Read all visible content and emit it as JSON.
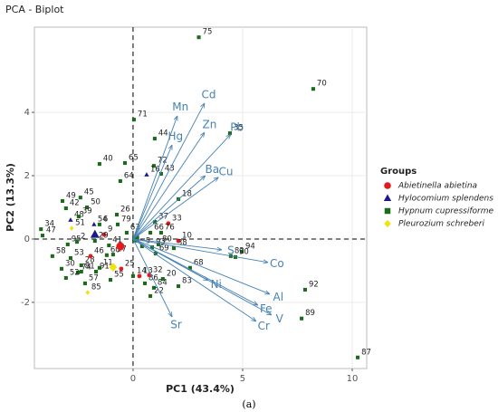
{
  "chart_data": {
    "type": "biplot",
    "title": "PCA - Biplot",
    "xlabel": "PC1 (43.4%)",
    "ylabel": "PC2 (13.3%)",
    "caption": "(a)",
    "xlim": [
      -4.5,
      10.66
    ],
    "ylim": [
      -4.09,
      6.69
    ],
    "xticks": [
      0,
      5,
      10
    ],
    "yticks": [
      -2,
      0,
      2,
      4
    ],
    "grid": true,
    "legend_title": "Groups",
    "loading_color": "#4682b4",
    "groups": [
      {
        "name": "Abietinella abietina",
        "color": "#e41a1c",
        "shape": "circle",
        "centroid": [
          -0.58,
          -0.23
        ]
      },
      {
        "name": "Hylocomium splendens",
        "color": "#1a1a8c",
        "shape": "triangle",
        "centroid": [
          -1.74,
          0.14
        ]
      },
      {
        "name": "Hypnum cupressiforme",
        "color": "#1b6b1b",
        "shape": "square",
        "centroid": [
          0.12,
          0
        ]
      },
      {
        "name": "Pleurozium schreberi",
        "color": "#f2e20f",
        "shape": "diamond",
        "centroid": [
          -0.91,
          -0.89
        ]
      }
    ],
    "loadings": [
      {
        "name": "Cd",
        "x": 3.26,
        "y": 4.29
      },
      {
        "name": "Mn",
        "x": 2.02,
        "y": 3.89
      },
      {
        "name": "Zn",
        "x": 3.26,
        "y": 3.37
      },
      {
        "name": "Pb",
        "x": 4.46,
        "y": 3.31
      },
      {
        "name": "Hg",
        "x": 1.78,
        "y": 2.97
      },
      {
        "name": "Ba",
        "x": 3.3,
        "y": 2.0
      },
      {
        "name": "Cu",
        "x": 3.9,
        "y": 1.95
      },
      {
        "name": "S",
        "x": 4.05,
        "y": -0.34
      },
      {
        "name": "Co",
        "x": 6.16,
        "y": -0.74
      },
      {
        "name": "Ni",
        "x": 3.43,
        "y": -1.31
      },
      {
        "name": "Al",
        "x": 6.24,
        "y": -1.74
      },
      {
        "name": "Fe",
        "x": 5.7,
        "y": -2.09
      },
      {
        "name": "V",
        "x": 6.32,
        "y": -2.4
      },
      {
        "name": "Cr",
        "x": 5.62,
        "y": -2.6
      },
      {
        "name": "Sr",
        "x": 1.78,
        "y": -2.46
      }
    ],
    "points": [
      {
        "label": "75",
        "x": 3.0,
        "y": 6.37,
        "group": 2
      },
      {
        "label": "70",
        "x": 8.22,
        "y": 4.74,
        "group": 2
      },
      {
        "label": "87",
        "x": 10.25,
        "y": -3.74,
        "group": 2
      },
      {
        "label": "89",
        "x": 7.69,
        "y": -2.51,
        "group": 2
      },
      {
        "label": "92",
        "x": 7.85,
        "y": -1.6,
        "group": 2
      },
      {
        "label": "71",
        "x": 0.04,
        "y": 3.77,
        "group": 2
      },
      {
        "label": "44",
        "x": 0.99,
        "y": 3.17,
        "group": 2
      },
      {
        "label": "35",
        "x": 4.42,
        "y": 3.34,
        "group": 2
      },
      {
        "label": "72",
        "x": 0.95,
        "y": 2.31,
        "group": 2
      },
      {
        "label": "16",
        "x": 0.62,
        "y": 2.03,
        "group": 1
      },
      {
        "label": "43",
        "x": 1.28,
        "y": 2.06,
        "group": 2
      },
      {
        "label": "65",
        "x": -0.37,
        "y": 2.4,
        "group": 2
      },
      {
        "label": "40",
        "x": -1.53,
        "y": 2.37,
        "group": 2
      },
      {
        "label": "64",
        "x": -0.58,
        "y": 1.83,
        "group": 2
      },
      {
        "label": "45",
        "x": -2.4,
        "y": 1.31,
        "group": 2
      },
      {
        "label": "49",
        "x": -3.22,
        "y": 1.2,
        "group": 2
      },
      {
        "label": "42",
        "x": -3.06,
        "y": 0.97,
        "group": 2
      },
      {
        "label": "50",
        "x": -2.1,
        "y": 1.0,
        "group": 2
      },
      {
        "label": "48",
        "x": -2.85,
        "y": 0.6,
        "group": 1
      },
      {
        "label": "51",
        "x": -2.8,
        "y": 0.34,
        "group": 3
      },
      {
        "label": "34",
        "x": -4.2,
        "y": 0.31,
        "group": 2
      },
      {
        "label": "47",
        "x": -4.13,
        "y": 0.11,
        "group": 2
      },
      {
        "label": "39",
        "x": -2.48,
        "y": 0.71,
        "group": 2
      },
      {
        "label": "54",
        "x": -1.78,
        "y": 0.46,
        "group": 1
      },
      {
        "label": "6",
        "x": -1.53,
        "y": 0.46,
        "group": 2
      },
      {
        "label": "26",
        "x": -0.74,
        "y": 0.77,
        "group": 2
      },
      {
        "label": "79",
        "x": -0.7,
        "y": 0.46,
        "group": 2
      },
      {
        "label": "9",
        "x": -1.32,
        "y": 0.14,
        "group": 0
      },
      {
        "label": "63",
        "x": -0.29,
        "y": 0.2,
        "group": 2
      },
      {
        "label": "18",
        "x": 2.07,
        "y": 1.26,
        "group": 2
      },
      {
        "label": "33",
        "x": 1.61,
        "y": 0.49,
        "group": 0
      },
      {
        "label": "37",
        "x": 1.0,
        "y": 0.54,
        "group": 2
      },
      {
        "label": "76",
        "x": 1.28,
        "y": 0.2,
        "group": 2
      },
      {
        "label": "66",
        "x": 0.79,
        "y": 0.2,
        "group": 2
      },
      {
        "label": "10",
        "x": 2.07,
        "y": -0.06,
        "group": 0
      },
      {
        "label": "80",
        "x": 1.16,
        "y": -0.17,
        "group": 2
      },
      {
        "label": "38",
        "x": 1.86,
        "y": -0.29,
        "group": 2
      },
      {
        "label": "93",
        "x": 0.87,
        "y": -0.26,
        "group": 2
      },
      {
        "label": "69",
        "x": 1.03,
        "y": -0.46,
        "group": 2
      },
      {
        "label": "82",
        "x": 4.46,
        "y": -0.54,
        "group": 2
      },
      {
        "label": "94",
        "x": 4.96,
        "y": -0.4,
        "group": 2
      },
      {
        "label": "90",
        "x": 4.67,
        "y": -0.57,
        "group": 2
      },
      {
        "label": "68",
        "x": 2.6,
        "y": -0.91,
        "group": 2
      },
      {
        "label": "20",
        "x": 1.36,
        "y": -1.26,
        "group": 2
      },
      {
        "label": "83",
        "x": 2.07,
        "y": -1.49,
        "group": 2
      },
      {
        "label": "84",
        "x": 0.95,
        "y": -1.54,
        "group": 2
      },
      {
        "label": "86",
        "x": 0.54,
        "y": -1.4,
        "group": 2
      },
      {
        "label": "32",
        "x": 0.74,
        "y": -1.14,
        "group": 0
      },
      {
        "label": "22",
        "x": 0.79,
        "y": -1.8,
        "group": 2
      },
      {
        "label": "13",
        "x": 0.29,
        "y": -1.17,
        "group": 0
      },
      {
        "label": "14",
        "x": 0.0,
        "y": -1.17,
        "group": 2
      },
      {
        "label": "25",
        "x": -0.54,
        "y": -0.94,
        "group": 0
      },
      {
        "label": "55",
        "x": -1.03,
        "y": -1.29,
        "group": 2
      },
      {
        "label": "17",
        "x": -0.91,
        "y": -0.49,
        "group": 2
      },
      {
        "label": "41",
        "x": -1.1,
        "y": -0.2,
        "group": 2
      },
      {
        "label": "60",
        "x": -1.2,
        "y": -0.51,
        "group": 2
      },
      {
        "label": "11",
        "x": -1.53,
        "y": -0.91,
        "group": 2
      },
      {
        "label": "91",
        "x": -1.69,
        "y": -1.03,
        "group": 2
      },
      {
        "label": "81",
        "x": -2.36,
        "y": -1.03,
        "group": 2
      },
      {
        "label": "74",
        "x": -2.52,
        "y": -1.06,
        "group": 2
      },
      {
        "label": "57",
        "x": -2.19,
        "y": -1.4,
        "group": 2
      },
      {
        "label": "85",
        "x": -2.07,
        "y": -1.69,
        "group": 3
      },
      {
        "label": "52",
        "x": -3.06,
        "y": -1.23,
        "group": 2
      },
      {
        "label": "30",
        "x": -3.26,
        "y": -0.94,
        "group": 2
      },
      {
        "label": "28",
        "x": -2.36,
        "y": -0.83,
        "group": 2
      },
      {
        "label": "53",
        "x": -2.85,
        "y": -0.6,
        "group": 2
      },
      {
        "label": "46",
        "x": -1.94,
        "y": -0.54,
        "group": 0
      },
      {
        "label": "58",
        "x": -3.68,
        "y": -0.54,
        "group": 2
      },
      {
        "label": "95",
        "x": -2.98,
        "y": -0.17,
        "group": 2
      },
      {
        "label": "2",
        "x": -2.56,
        "y": -0.09,
        "group": 2
      },
      {
        "label": "29",
        "x": -1.74,
        "y": -0.06,
        "group": 2
      },
      {
        "label": "5",
        "x": 0.41,
        "y": -0.23,
        "group": 2
      }
    ]
  }
}
